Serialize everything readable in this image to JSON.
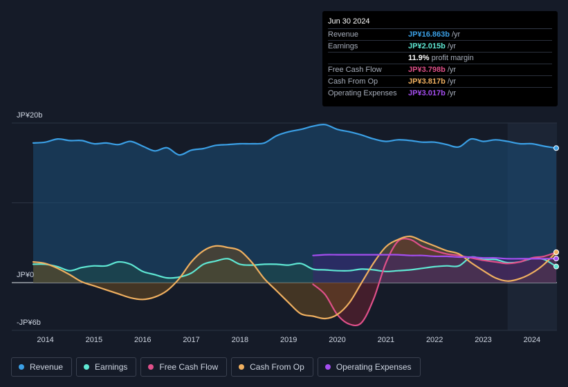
{
  "tooltip": {
    "date": "Jun 30 2024",
    "rows": [
      {
        "label": "Revenue",
        "value": "JP¥16.863b",
        "unit": "/yr",
        "color": "#3ba0e6"
      },
      {
        "label": "Earnings",
        "value": "JP¥2.015b",
        "unit": "/yr",
        "color": "#5fe8d4"
      },
      {
        "label": "",
        "value": "11.9%",
        "unit": "profit margin",
        "color": "#ffffff"
      },
      {
        "label": "Free Cash Flow",
        "value": "JP¥3.798b",
        "unit": "/yr",
        "color": "#e0508a"
      },
      {
        "label": "Cash From Op",
        "value": "JP¥3.817b",
        "unit": "/yr",
        "color": "#f0b060"
      },
      {
        "label": "Operating Expenses",
        "value": "JP¥3.017b",
        "unit": "/yr",
        "color": "#a44ef0"
      }
    ]
  },
  "legend": [
    {
      "label": "Revenue",
      "color": "#3ba0e6"
    },
    {
      "label": "Earnings",
      "color": "#5fe8d4"
    },
    {
      "label": "Free Cash Flow",
      "color": "#e0508a"
    },
    {
      "label": "Cash From Op",
      "color": "#f0b060"
    },
    {
      "label": "Operating Expenses",
      "color": "#a44ef0"
    }
  ],
  "chart_data": {
    "type": "area",
    "title": "",
    "xlabel": "",
    "ylabel": "",
    "ylim": [
      -6,
      20
    ],
    "xlim": [
      2013.75,
      2024.5
    ],
    "y_tick_labels": [
      {
        "label": "JP¥20b",
        "value": 20
      },
      {
        "label": "JP¥0",
        "value": 0
      },
      {
        "label": "-JP¥6b",
        "value": -6
      }
    ],
    "gridlines": [
      20,
      10
    ],
    "x_ticks": [
      2014,
      2015,
      2016,
      2017,
      2018,
      2019,
      2020,
      2021,
      2022,
      2023,
      2024
    ],
    "forecast_shade_start": 2023.5,
    "series": [
      {
        "name": "Revenue",
        "color": "#3ba0e6",
        "fill": "#1b4f78",
        "points": [
          [
            2013.75,
            17.5
          ],
          [
            2014,
            17.6
          ],
          [
            2014.25,
            18
          ],
          [
            2014.5,
            17.8
          ],
          [
            2014.75,
            17.8
          ],
          [
            2015,
            17.4
          ],
          [
            2015.25,
            17.5
          ],
          [
            2015.5,
            17.3
          ],
          [
            2015.75,
            17.7
          ],
          [
            2016,
            17.1
          ],
          [
            2016.25,
            16.5
          ],
          [
            2016.5,
            16.9
          ],
          [
            2016.75,
            16
          ],
          [
            2017,
            16.6
          ],
          [
            2017.25,
            16.8
          ],
          [
            2017.5,
            17.2
          ],
          [
            2017.75,
            17.3
          ],
          [
            2018,
            17.4
          ],
          [
            2018.25,
            17.4
          ],
          [
            2018.5,
            17.5
          ],
          [
            2018.75,
            18.4
          ],
          [
            2019,
            18.9
          ],
          [
            2019.25,
            19.2
          ],
          [
            2019.5,
            19.6
          ],
          [
            2019.75,
            19.8
          ],
          [
            2020,
            19.2
          ],
          [
            2020.25,
            18.9
          ],
          [
            2020.5,
            18.5
          ],
          [
            2020.75,
            18
          ],
          [
            2021,
            17.7
          ],
          [
            2021.25,
            17.9
          ],
          [
            2021.5,
            17.8
          ],
          [
            2021.75,
            17.6
          ],
          [
            2022,
            17.6
          ],
          [
            2022.25,
            17.3
          ],
          [
            2022.5,
            17
          ],
          [
            2022.75,
            18
          ],
          [
            2023,
            17.7
          ],
          [
            2023.25,
            17.9
          ],
          [
            2023.5,
            17.7
          ],
          [
            2023.75,
            17.4
          ],
          [
            2024,
            17.4
          ],
          [
            2024.25,
            17.1
          ],
          [
            2024.5,
            16.86
          ]
        ]
      },
      {
        "name": "Earnings",
        "color": "#5fe8d4",
        "fill": "#1f4d48",
        "points": [
          [
            2013.75,
            2.3
          ],
          [
            2014,
            2.3
          ],
          [
            2014.25,
            2
          ],
          [
            2014.5,
            1.5
          ],
          [
            2014.75,
            1.9
          ],
          [
            2015,
            2.1
          ],
          [
            2015.25,
            2.1
          ],
          [
            2015.5,
            2.6
          ],
          [
            2015.75,
            2.3
          ],
          [
            2016,
            1.4
          ],
          [
            2016.25,
            1
          ],
          [
            2016.5,
            0.6
          ],
          [
            2016.75,
            0.7
          ],
          [
            2017,
            1.2
          ],
          [
            2017.25,
            2.3
          ],
          [
            2017.5,
            2.7
          ],
          [
            2017.75,
            3
          ],
          [
            2018,
            2.3
          ],
          [
            2018.25,
            2.2
          ],
          [
            2018.5,
            2.3
          ],
          [
            2018.75,
            2.3
          ],
          [
            2019,
            2.2
          ],
          [
            2019.25,
            2.4
          ],
          [
            2019.5,
            1.7
          ],
          [
            2019.75,
            1.6
          ],
          [
            2020,
            1.5
          ],
          [
            2020.25,
            1.5
          ],
          [
            2020.5,
            1.7
          ],
          [
            2020.75,
            1.6
          ],
          [
            2021,
            1.4
          ],
          [
            2021.25,
            1.5
          ],
          [
            2021.5,
            1.6
          ],
          [
            2021.75,
            1.8
          ],
          [
            2022,
            2
          ],
          [
            2022.25,
            2.1
          ],
          [
            2022.5,
            2.1
          ],
          [
            2022.75,
            3.2
          ],
          [
            2023,
            2.9
          ],
          [
            2023.25,
            2.9
          ],
          [
            2023.5,
            2.5
          ],
          [
            2023.75,
            2.6
          ],
          [
            2024,
            3.0
          ],
          [
            2024.25,
            2.9
          ],
          [
            2024.5,
            2.02
          ]
        ]
      },
      {
        "name": "Free Cash Flow",
        "color": "#e0508a",
        "fill": "#6a2030",
        "points": [
          [
            2019.5,
            -0.2
          ],
          [
            2019.75,
            -1.5
          ],
          [
            2020,
            -4
          ],
          [
            2020.25,
            -5.2
          ],
          [
            2020.5,
            -5.0
          ],
          [
            2020.75,
            -2
          ],
          [
            2021,
            2.5
          ],
          [
            2021.25,
            5.2
          ],
          [
            2021.5,
            5.4
          ],
          [
            2021.75,
            4.5
          ],
          [
            2022,
            4
          ],
          [
            2022.25,
            3.6
          ],
          [
            2022.5,
            3.4
          ],
          [
            2022.75,
            3.1
          ],
          [
            2023,
            2.8
          ],
          [
            2023.25,
            2.6
          ],
          [
            2023.5,
            2.4
          ],
          [
            2023.75,
            2.6
          ],
          [
            2024,
            3.1
          ],
          [
            2024.25,
            3.3
          ],
          [
            2024.5,
            3.8
          ]
        ]
      },
      {
        "name": "Cash From Op",
        "color": "#f0b060",
        "fill": "#6a4a20",
        "points": [
          [
            2013.75,
            2.6
          ],
          [
            2014,
            2.4
          ],
          [
            2014.25,
            1.8
          ],
          [
            2014.5,
            1
          ],
          [
            2014.75,
            0.1
          ],
          [
            2015,
            -0.4
          ],
          [
            2015.25,
            -0.9
          ],
          [
            2015.5,
            -1.4
          ],
          [
            2015.75,
            -1.9
          ],
          [
            2016,
            -2.1
          ],
          [
            2016.25,
            -1.8
          ],
          [
            2016.5,
            -1
          ],
          [
            2016.75,
            0.5
          ],
          [
            2017,
            2.6
          ],
          [
            2017.25,
            4
          ],
          [
            2017.5,
            4.6
          ],
          [
            2017.75,
            4.4
          ],
          [
            2018,
            4
          ],
          [
            2018.25,
            2.5
          ],
          [
            2018.5,
            0.5
          ],
          [
            2018.75,
            -1
          ],
          [
            2019,
            -2.5
          ],
          [
            2019.25,
            -3.9
          ],
          [
            2019.5,
            -4.2
          ],
          [
            2019.75,
            -4.5
          ],
          [
            2020,
            -4
          ],
          [
            2020.25,
            -2.5
          ],
          [
            2020.5,
            0
          ],
          [
            2020.75,
            2.5
          ],
          [
            2021,
            4.5
          ],
          [
            2021.25,
            5.4
          ],
          [
            2021.5,
            5.8
          ],
          [
            2021.75,
            5.2
          ],
          [
            2022,
            4.6
          ],
          [
            2022.25,
            4
          ],
          [
            2022.5,
            3.6
          ],
          [
            2022.75,
            2.5
          ],
          [
            2023,
            1.5
          ],
          [
            2023.25,
            0.6
          ],
          [
            2023.5,
            0.2
          ],
          [
            2023.75,
            0.5
          ],
          [
            2024,
            1.2
          ],
          [
            2024.25,
            2.3
          ],
          [
            2024.5,
            3.82
          ]
        ]
      },
      {
        "name": "Operating Expenses",
        "color": "#a44ef0",
        "fill": "#3a2470",
        "points": [
          [
            2019.5,
            3.4
          ],
          [
            2019.75,
            3.5
          ],
          [
            2020,
            3.5
          ],
          [
            2020.25,
            3.5
          ],
          [
            2020.5,
            3.5
          ],
          [
            2020.75,
            3.5
          ],
          [
            2021,
            3.5
          ],
          [
            2021.25,
            3.5
          ],
          [
            2021.5,
            3.4
          ],
          [
            2021.75,
            3.4
          ],
          [
            2022,
            3.3
          ],
          [
            2022.25,
            3.3
          ],
          [
            2022.5,
            3.2
          ],
          [
            2022.75,
            3.2
          ],
          [
            2023,
            3.1
          ],
          [
            2023.25,
            3.1
          ],
          [
            2023.5,
            3.0
          ],
          [
            2023.75,
            3.0
          ],
          [
            2024,
            3.0
          ],
          [
            2024.25,
            3.0
          ],
          [
            2024.5,
            3.02
          ]
        ]
      }
    ]
  }
}
